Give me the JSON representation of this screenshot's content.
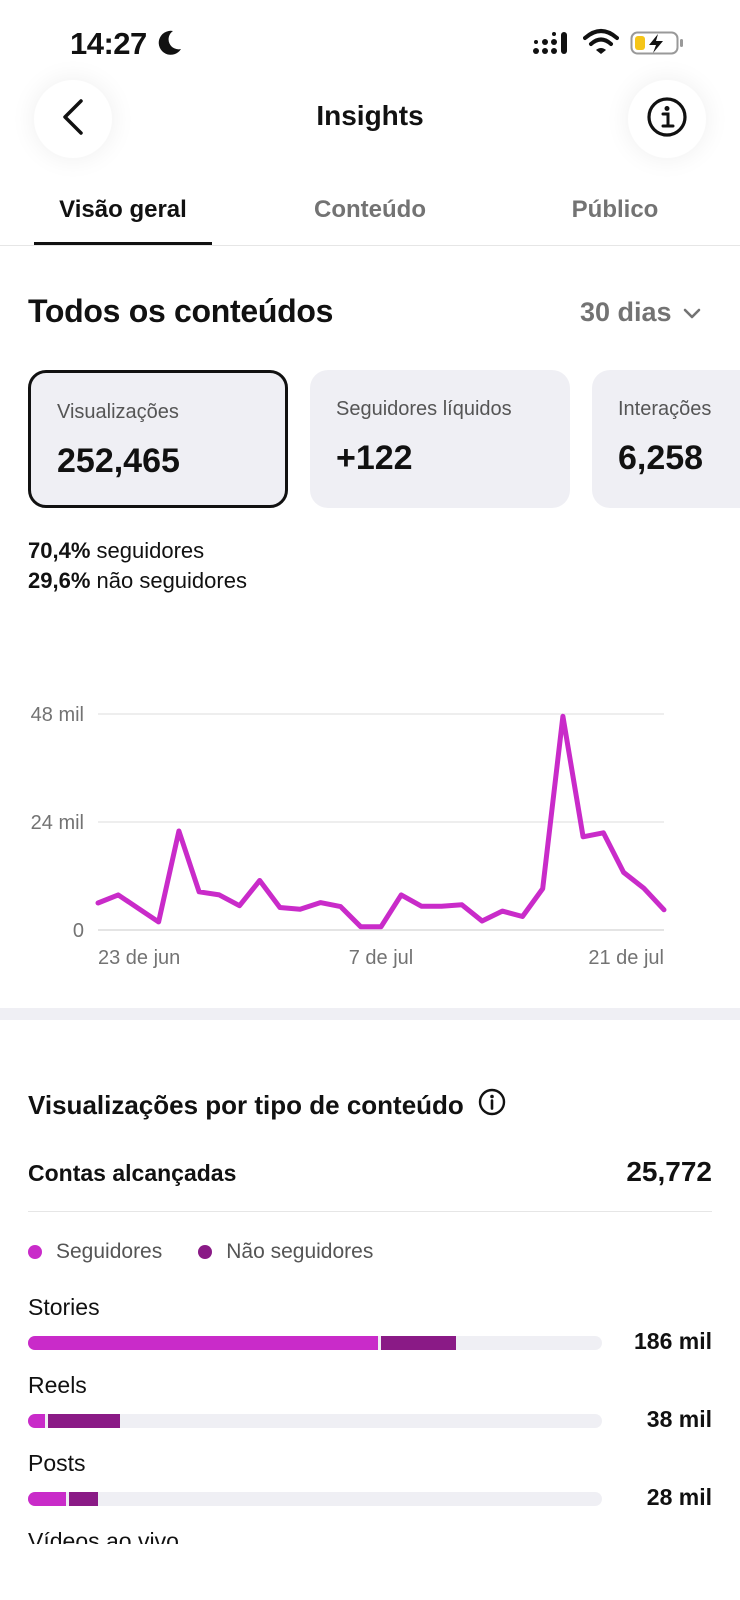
{
  "status_bar": {
    "time": "14:27"
  },
  "header": {
    "title": "Insights"
  },
  "tabs": [
    {
      "label": "Visão geral",
      "active": true
    },
    {
      "label": "Conteúdo",
      "active": false
    },
    {
      "label": "Público",
      "active": false
    }
  ],
  "overview": {
    "title": "Todos os conteúdos",
    "period": "30 dias",
    "cards": [
      {
        "label": "Visualizações",
        "value": "252,465",
        "selected": true
      },
      {
        "label": "Seguidores líquidos",
        "value": "+122",
        "selected": false
      },
      {
        "label": "Interações",
        "value": "6,258",
        "selected": false
      }
    ],
    "split": [
      {
        "pct": "70,4%",
        "text": "seguidores"
      },
      {
        "pct": "29,6%",
        "text": "não seguidores"
      }
    ]
  },
  "chart_data": {
    "type": "line",
    "y_ticks": [
      "48 mil",
      "24 mil",
      "0"
    ],
    "x_ticks": [
      "23 de jun",
      "7 de jul",
      "21 de jul"
    ],
    "ylim": [
      0,
      48000
    ],
    "grid": true,
    "color": "#c92bc9",
    "values": [
      6000,
      7800,
      4800,
      1800,
      22000,
      8500,
      7800,
      5400,
      11000,
      5000,
      4600,
      6100,
      5200,
      700,
      700,
      7800,
      5300,
      5300,
      5600,
      2000,
      4200,
      3000,
      9200,
      47500,
      20700,
      21600,
      12800,
      9300,
      4500
    ]
  },
  "views_by_type": {
    "title": "Visualizações por tipo de conteúdo",
    "reach_label": "Contas alcançadas",
    "reach_value": "25,772",
    "legend": [
      {
        "label": "Seguidores",
        "color": "#c92bc9"
      },
      {
        "label": "Não seguidores",
        "color": "#8a1a86"
      }
    ],
    "rows": [
      {
        "label": "Stories",
        "value": "186 mil",
        "followers_frac": 0.61,
        "non_followers_frac": 0.13
      },
      {
        "label": "Reels",
        "value": "38 mil",
        "followers_frac": 0.03,
        "non_followers_frac": 0.125
      },
      {
        "label": "Posts",
        "value": "28 mil",
        "followers_frac": 0.067,
        "non_followers_frac": 0.05
      },
      {
        "label": "Vídeos ao vivo"
      }
    ]
  }
}
